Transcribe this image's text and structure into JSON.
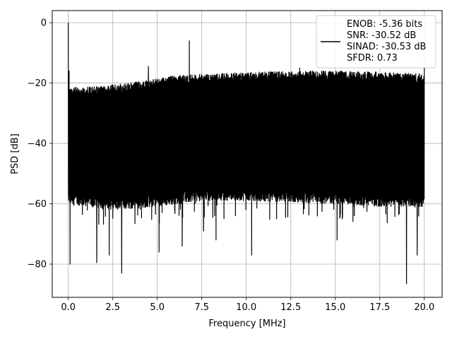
{
  "chart_data": {
    "type": "line",
    "title": "",
    "xlabel": "Frequency [MHz]",
    "ylabel": "PSD [dB]",
    "xlim": [
      -0.9,
      21.0
    ],
    "ylim": [
      -91,
      4
    ],
    "xticks": [
      0.0,
      2.5,
      5.0,
      7.5,
      10.0,
      12.5,
      15.0,
      17.5,
      20.0
    ],
    "xtick_labels": [
      "0.0",
      "2.5",
      "5.0",
      "7.5",
      "10.0",
      "12.5",
      "15.0",
      "17.5",
      "20.0"
    ],
    "yticks": [
      0,
      -20,
      -40,
      -60,
      -80
    ],
    "ytick_labels": [
      "0",
      "−20",
      "−40",
      "−60",
      "−80"
    ],
    "grid": true,
    "legend_position": "top-right",
    "legend": [
      "ENOB: -5.36 bits",
      "SNR: -30.52 dB",
      "SINAD: -30.53 dB",
      "SFDR: 0.73"
    ],
    "series": [
      {
        "color": "#000000",
        "band_top": [
          [
            0.0,
            -23
          ],
          [
            2.0,
            -22.5
          ],
          [
            4.0,
            -21
          ],
          [
            6.0,
            -19
          ],
          [
            8.0,
            -18.5
          ],
          [
            10.0,
            -18
          ],
          [
            12.0,
            -17.5
          ],
          [
            14.0,
            -17.5
          ],
          [
            16.0,
            -17.5
          ],
          [
            18.0,
            -18
          ],
          [
            20.0,
            -18.5
          ]
        ],
        "band_bottom": [
          [
            0.0,
            -58
          ],
          [
            2.5,
            -60
          ],
          [
            5.0,
            -59
          ],
          [
            7.5,
            -57
          ],
          [
            10.0,
            -57
          ],
          [
            12.5,
            -57.5
          ],
          [
            15.0,
            -58
          ],
          [
            17.5,
            -59
          ],
          [
            20.0,
            -59
          ]
        ],
        "peaks": [
          [
            0.0,
            0
          ],
          [
            0.05,
            -16
          ],
          [
            0.15,
            -22
          ],
          [
            4.5,
            -14.5
          ],
          [
            6.8,
            -6
          ],
          [
            13.0,
            -15
          ],
          [
            20.0,
            -15
          ]
        ],
        "dips": [
          [
            0.1,
            -80
          ],
          [
            1.6,
            -79.5
          ],
          [
            2.3,
            -77
          ],
          [
            3.0,
            -83
          ],
          [
            5.1,
            -76
          ],
          [
            6.4,
            -74
          ],
          [
            7.6,
            -69
          ],
          [
            8.3,
            -72
          ],
          [
            10.3,
            -77
          ],
          [
            15.1,
            -72
          ],
          [
            19.0,
            -86.5
          ],
          [
            19.6,
            -77
          ]
        ]
      }
    ]
  }
}
